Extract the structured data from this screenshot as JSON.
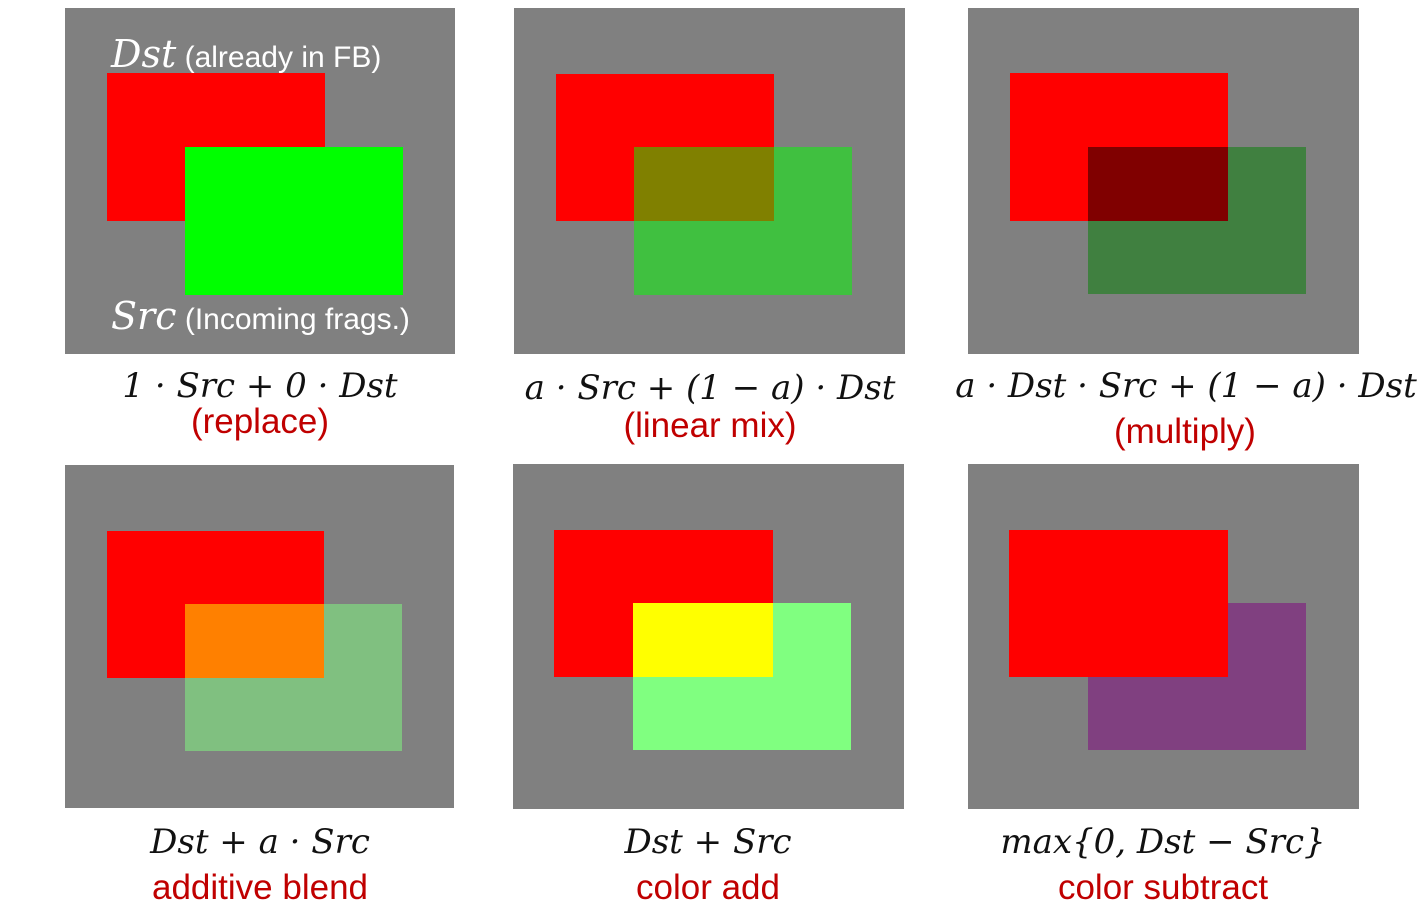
{
  "labels": {
    "dst_symbol": "Dst",
    "dst_note": "(already in FB)",
    "src_symbol": "Src",
    "src_note": "(Incoming frags.)"
  },
  "panels": [
    {
      "formula": "1 · Src + 0 · Dst",
      "caption": "(replace)",
      "colors": {
        "dst": "#ff0000",
        "src": "#00ff00",
        "overlap": "#00ff00"
      }
    },
    {
      "formula": "a · Src + (1 − a) · Dst",
      "caption": "(linear mix)",
      "colors": {
        "dst": "#ff0000",
        "src": "#40c040",
        "overlap": "#808000"
      }
    },
    {
      "formula": "a · Dst · Src + (1 − a) · Dst",
      "caption": "(multiply)",
      "colors": {
        "dst": "#ff0000",
        "src": "#408040",
        "overlap": "#800000"
      }
    },
    {
      "formula": "Dst + a · Src",
      "caption": "additive blend",
      "colors": {
        "dst": "#ff0000",
        "src": "#80c080",
        "overlap": "#ff8000"
      }
    },
    {
      "formula": "Dst + Src",
      "caption": "color add",
      "colors": {
        "dst": "#ff0000",
        "src": "#80ff80",
        "overlap": "#ffff00"
      }
    },
    {
      "formula": "max{0, Dst − Src}",
      "caption": "color subtract",
      "colors": {
        "dst": "#ff0000",
        "src": "#804080",
        "overlap": "#ff0000"
      }
    }
  ]
}
